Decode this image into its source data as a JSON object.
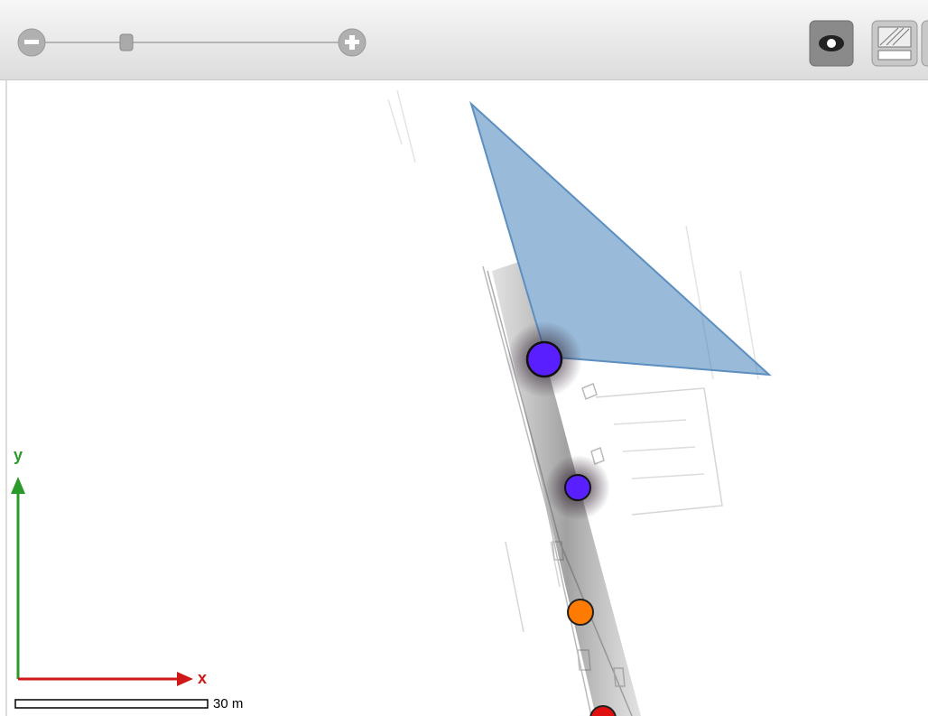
{
  "axes": {
    "y_label": "y",
    "x_label": "x"
  },
  "scale_bar": {
    "label": "30 m"
  }
}
